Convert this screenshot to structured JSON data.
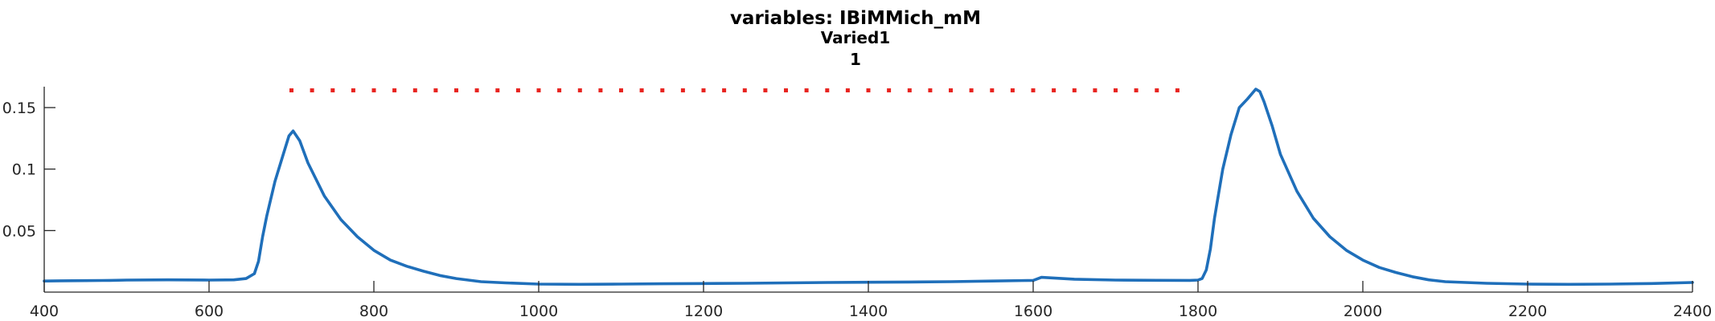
{
  "chart_data": {
    "type": "line",
    "title_lines": [
      "variables: IBiMMich_mM",
      "Varied1",
      "1"
    ],
    "xlabel": "",
    "ylabel": "",
    "xlim": [
      400,
      2400
    ],
    "ylim": [
      0,
      0.167
    ],
    "xticks": [
      400,
      600,
      800,
      1000,
      1200,
      1400,
      1600,
      1800,
      2000,
      2200,
      2400
    ],
    "yticks": [
      0.05,
      0.1,
      0.15
    ],
    "ytick_labels": [
      "0.05",
      "0.1",
      "0.15"
    ],
    "grid": false,
    "colors": {
      "line": "#1f6fba",
      "marker": "#e8231f"
    },
    "series": [
      {
        "style": "solid-line",
        "x": [
          400,
          420,
          450,
          480,
          500,
          550,
          600,
          630,
          645,
          655,
          660,
          665,
          670,
          680,
          690,
          697,
          702,
          710,
          720,
          740,
          760,
          780,
          800,
          820,
          840,
          860,
          880,
          900,
          930,
          960,
          1000,
          1050,
          1100,
          1150,
          1200,
          1250,
          1300,
          1350,
          1400,
          1450,
          1500,
          1550,
          1600,
          1610,
          1650,
          1700,
          1750,
          1790,
          1800,
          1805,
          1810,
          1815,
          1820,
          1825,
          1830,
          1840,
          1850,
          1860,
          1870,
          1875,
          1880,
          1890,
          1900,
          1920,
          1940,
          1960,
          1980,
          2000,
          2020,
          2040,
          2060,
          2080,
          2100,
          2150,
          2200,
          2250,
          2300,
          2350,
          2400
        ],
        "y": [
          0.009,
          0.0092,
          0.0093,
          0.0095,
          0.0098,
          0.01,
          0.0098,
          0.01,
          0.011,
          0.015,
          0.025,
          0.045,
          0.062,
          0.09,
          0.112,
          0.127,
          0.131,
          0.123,
          0.105,
          0.078,
          0.059,
          0.045,
          0.034,
          0.026,
          0.021,
          0.017,
          0.0135,
          0.011,
          0.0085,
          0.0075,
          0.0065,
          0.0063,
          0.0065,
          0.0068,
          0.007,
          0.0072,
          0.0075,
          0.0078,
          0.008,
          0.0082,
          0.0085,
          0.009,
          0.0095,
          0.012,
          0.0105,
          0.0098,
          0.0096,
          0.0095,
          0.0098,
          0.011,
          0.018,
          0.035,
          0.06,
          0.08,
          0.1,
          0.128,
          0.15,
          0.157,
          0.165,
          0.163,
          0.155,
          0.135,
          0.112,
          0.082,
          0.06,
          0.045,
          0.034,
          0.026,
          0.02,
          0.016,
          0.0125,
          0.01,
          0.0085,
          0.0072,
          0.0065,
          0.0063,
          0.0065,
          0.007,
          0.0078
        ]
      },
      {
        "style": "dotted",
        "x": [
          700,
          725,
          750,
          775,
          800,
          825,
          850,
          875,
          900,
          925,
          950,
          975,
          1000,
          1025,
          1050,
          1075,
          1100,
          1125,
          1150,
          1175,
          1200,
          1225,
          1250,
          1275,
          1300,
          1325,
          1350,
          1375,
          1400,
          1425,
          1450,
          1475,
          1500,
          1525,
          1550,
          1575,
          1600,
          1625,
          1650,
          1675,
          1700,
          1725,
          1750,
          1775
        ],
        "y": [
          0.164,
          0.164,
          0.164,
          0.164,
          0.164,
          0.164,
          0.164,
          0.164,
          0.164,
          0.164,
          0.164,
          0.164,
          0.164,
          0.164,
          0.164,
          0.164,
          0.164,
          0.164,
          0.164,
          0.164,
          0.164,
          0.164,
          0.164,
          0.164,
          0.164,
          0.164,
          0.164,
          0.164,
          0.164,
          0.164,
          0.164,
          0.164,
          0.164,
          0.164,
          0.164,
          0.164,
          0.164,
          0.164,
          0.164,
          0.164,
          0.164,
          0.164,
          0.164,
          0.164
        ]
      }
    ]
  }
}
